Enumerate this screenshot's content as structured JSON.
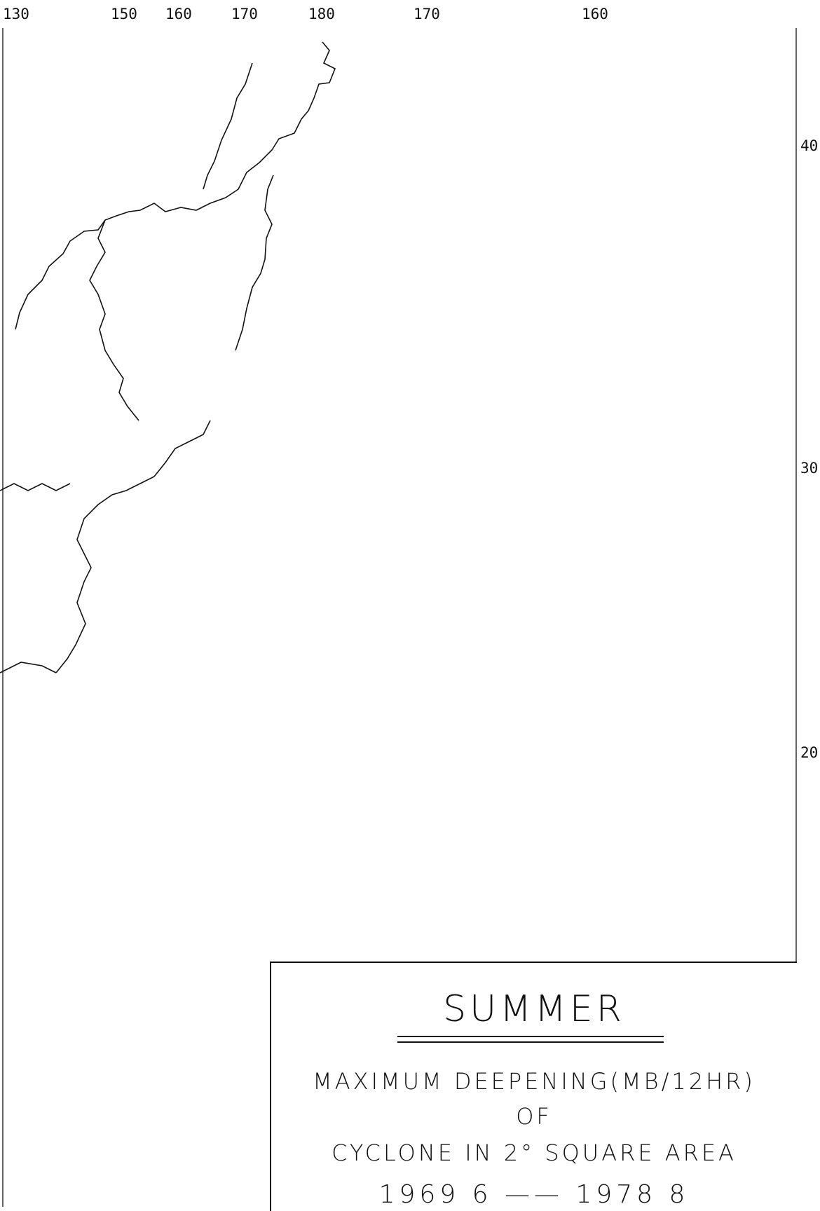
{
  "labels": {
    "top": [
      "130",
      "150",
      "160",
      "170",
      "180",
      "170",
      "160"
    ],
    "right": [
      "40",
      "30",
      "20"
    ]
  },
  "legend": {
    "title": "SUMMER",
    "line1": "MAXIMUM DEEPENING(MB/12HR)",
    "line2": "OF",
    "line3": "CYCLONE IN 2° SQUARE AREA",
    "line4": "1969  6  ——  1978  8"
  },
  "colors": {
    "ink": "#111111",
    "paper": "#ffffff"
  },
  "symbol_types": [
    "boxed-asterisk",
    "asterisk",
    "hatched-square",
    "crosshatched-square"
  ]
}
